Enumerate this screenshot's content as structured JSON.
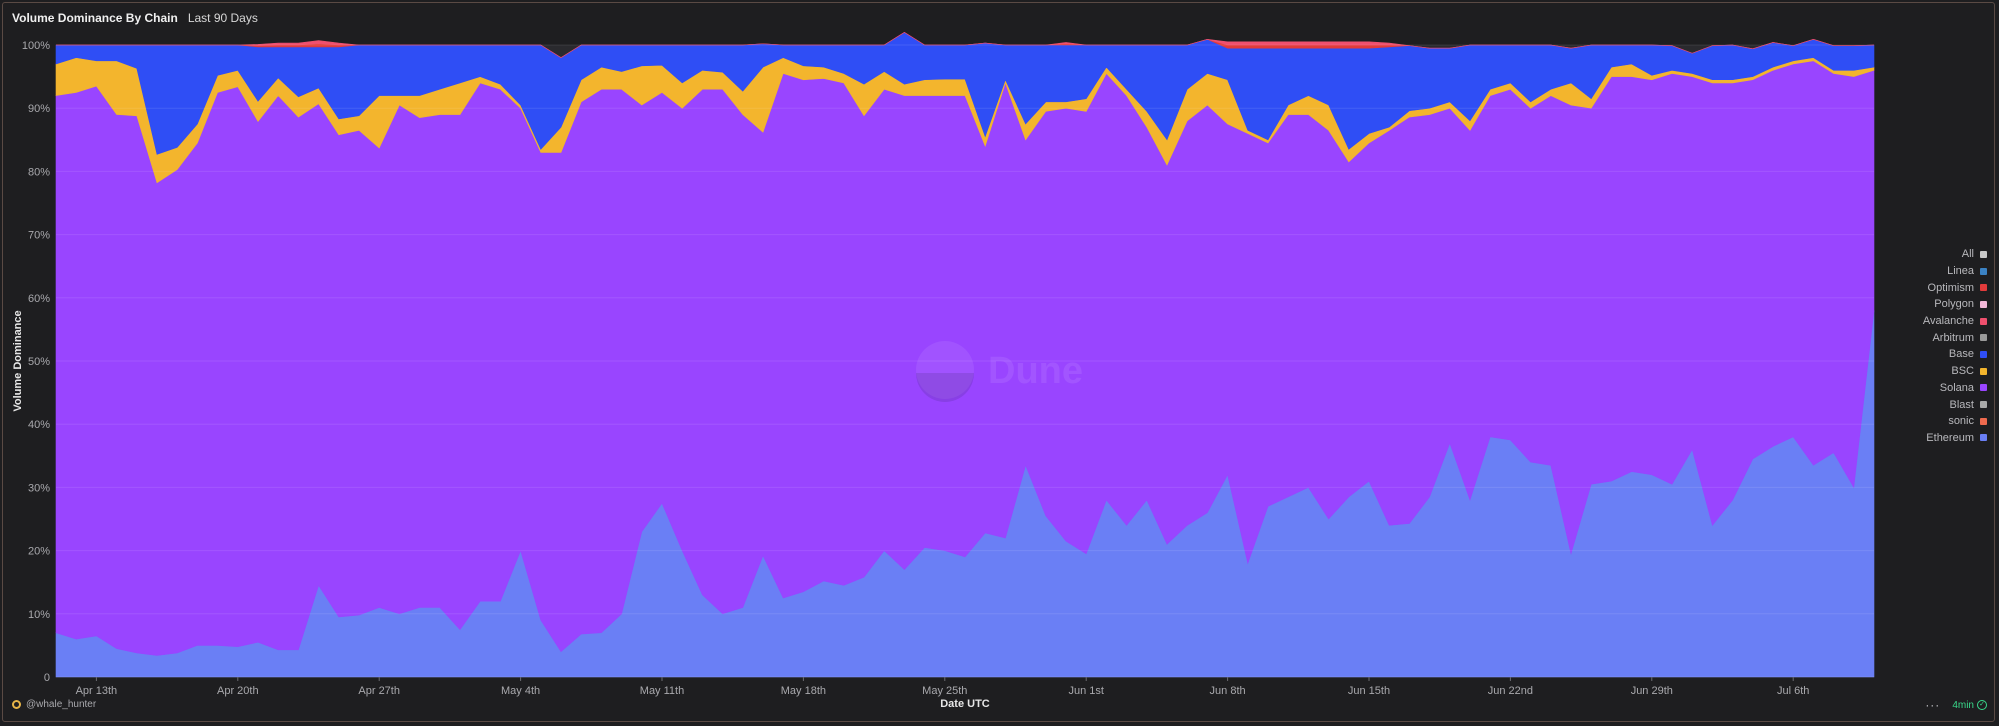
{
  "header": {
    "title": "Volume Dominance By Chain",
    "subtitle": "Last 90 Days"
  },
  "watermark": "Dune",
  "footer": {
    "user": "@whale_hunter",
    "status": "4min"
  },
  "icons": {
    "more": "more-icon",
    "status": "check-circle-icon",
    "user": "user-avatar-icon"
  },
  "chart_data": {
    "type": "area",
    "stacked": true,
    "normalized": true,
    "title": "Volume Dominance By Chain",
    "xlabel": "Date UTC",
    "ylabel": "Volume Dominance",
    "ylim": [
      0,
      100
    ],
    "yticks": [
      "0",
      "10%",
      "20%",
      "30%",
      "40%",
      "50%",
      "60%",
      "70%",
      "80%",
      "90%",
      "100%"
    ],
    "xticks": [
      {
        "label": "Apr 13th",
        "day": 2
      },
      {
        "label": "Apr 20th",
        "day": 9
      },
      {
        "label": "Apr 27th",
        "day": 16
      },
      {
        "label": "May 4th",
        "day": 23
      },
      {
        "label": "May 11th",
        "day": 30
      },
      {
        "label": "May 18th",
        "day": 37
      },
      {
        "label": "May 25th",
        "day": 44
      },
      {
        "label": "Jun 1st",
        "day": 51
      },
      {
        "label": "Jun 8th",
        "day": 58
      },
      {
        "label": "Jun 15th",
        "day": 65
      },
      {
        "label": "Jun 22nd",
        "day": 72
      },
      {
        "label": "Jun 29th",
        "day": 79
      },
      {
        "label": "Jul 6th",
        "day": 86
      }
    ],
    "grid": true,
    "legend_position": "right",
    "legend": [
      {
        "name": "All",
        "color": "#c8c8c8"
      },
      {
        "name": "Linea",
        "color": "#3b82c4"
      },
      {
        "name": "Optimism",
        "color": "#e23b3b"
      },
      {
        "name": "Polygon",
        "color": "#f3b8d8"
      },
      {
        "name": "Avalanche",
        "color": "#f0506e"
      },
      {
        "name": "Arbitrum",
        "color": "#9a9a9a"
      },
      {
        "name": "Base",
        "color": "#2f4ef5"
      },
      {
        "name": "BSC",
        "color": "#f3b52d"
      },
      {
        "name": "Solana",
        "color": "#9945ff"
      },
      {
        "name": "Blast",
        "color": "#a8a8a8"
      },
      {
        "name": "sonic",
        "color": "#ee6a4e"
      },
      {
        "name": "Ethereum",
        "color": "#6a7ff5"
      }
    ],
    "series": [
      {
        "name": "Ethereum",
        "color": "#6a7ff5",
        "values": [
          7,
          6,
          6.5,
          4.5,
          3.8,
          3.4,
          3.8,
          5,
          5,
          4.8,
          5.5,
          4.3,
          4.3,
          14.5,
          9.5,
          9.8,
          11,
          10,
          11,
          11,
          7.5,
          12,
          12,
          20,
          9,
          4,
          6.8,
          7,
          10,
          23,
          27.5,
          20,
          13,
          10,
          11,
          19.2,
          12.5,
          13.5,
          15.2,
          14.5,
          15.8,
          20,
          17,
          20.5,
          20,
          19,
          22.8,
          22,
          33.5,
          25.5,
          21.5,
          19.5,
          28,
          24,
          28,
          21,
          24,
          26,
          32,
          18,
          27,
          28.5,
          30,
          25,
          28.5,
          31,
          24,
          24.3,
          28.5,
          37,
          28,
          38,
          37.5,
          34,
          33.5,
          19.5,
          30.5,
          31,
          32.5,
          32,
          30.5,
          36,
          24,
          28,
          34.5,
          36.5,
          38,
          33.5,
          35.5,
          30,
          58
        ]
      },
      {
        "name": "Solana",
        "color": "#9945ff",
        "values": [
          85,
          86.5,
          87,
          84.5,
          85,
          74.8,
          76.5,
          79.5,
          87.5,
          88.6,
          82.4,
          87.7,
          84.3,
          76.2,
          76.3,
          76.7,
          72.7,
          80.5,
          77.5,
          78,
          81.5,
          82,
          81,
          70,
          74,
          79,
          84.2,
          86,
          83,
          67.5,
          65,
          70,
          80,
          83,
          78,
          67,
          83,
          81,
          79.5,
          79.5,
          73,
          73,
          75,
          71.5,
          72,
          73,
          61.2,
          72,
          51.5,
          64,
          68.5,
          70,
          67.5,
          68,
          59,
          60,
          64,
          64.5,
          55.5,
          68,
          57.5,
          60.5,
          59,
          61.5,
          53,
          53.5,
          62.5,
          64.3,
          60.5,
          53,
          58.5,
          54,
          55.5,
          56,
          58.5,
          71,
          59.5,
          64,
          62.5,
          62.5,
          65,
          59,
          70,
          66,
          60,
          59.5,
          59,
          64,
          60,
          65,
          38
        ]
      },
      {
        "name": "BSC",
        "color": "#f3b52d",
        "values": [
          5,
          5.5,
          4,
          8.5,
          7.5,
          4.5,
          3.5,
          3,
          2.7,
          2.6,
          3.2,
          2.8,
          3.2,
          2.5,
          2.5,
          2.3,
          8.3,
          1.5,
          3.5,
          4,
          5,
          1,
          0.8,
          0.5,
          0.5,
          4,
          3.5,
          3.5,
          2.8,
          6.2,
          4.3,
          4,
          3,
          2.7,
          3.7,
          10.3,
          2.5,
          2.2,
          1.8,
          1.5,
          5,
          2.8,
          1.8,
          2.5,
          2.6,
          2.6,
          1.5,
          0.5,
          2.5,
          1.5,
          1,
          2,
          1,
          1,
          2.5,
          4,
          5,
          5,
          7,
          0.5,
          0.5,
          1.5,
          3,
          4,
          2,
          1.5,
          0.5,
          1,
          1,
          1,
          1.5,
          1,
          1,
          1,
          1,
          3.5,
          1.5,
          1.5,
          2,
          0.7,
          0.5,
          0.5,
          0.5,
          0.5,
          0.5,
          0.5,
          0.5,
          0.5,
          0.5,
          1,
          0.5
        ]
      },
      {
        "name": "Base",
        "color": "#2f4ef5",
        "values": [
          3,
          2,
          2.5,
          2.5,
          3.7,
          17.3,
          16.2,
          12.5,
          4.8,
          4,
          8.6,
          4.9,
          7.9,
          6.5,
          11.4,
          11.2,
          8,
          8,
          8,
          7,
          6,
          5,
          6.2,
          9.5,
          16.5,
          11,
          5.5,
          3.5,
          4.2,
          3.3,
          3.2,
          6,
          4,
          4.3,
          7.3,
          3.7,
          2,
          3.3,
          3.5,
          4.5,
          6.2,
          4.2,
          8.2,
          5.5,
          5.4,
          5.4,
          14.8,
          5.5,
          12.5,
          9,
          9,
          8.5,
          3.5,
          7,
          10.5,
          15,
          7,
          5.4,
          5,
          13,
          14.5,
          9,
          7.5,
          9,
          16,
          13.5,
          12.7,
          10.3,
          9.5,
          8.5,
          12,
          7,
          6,
          9,
          7,
          5.5,
          8.5,
          3.5,
          3,
          4.8,
          3.9,
          3.2,
          5.4,
          5.5,
          4.4,
          3.9,
          2.4,
          2.9,
          3.9,
          3.9,
          3.5
        ]
      },
      {
        "name": "Optimism",
        "color": "#e23b3b",
        "values": [
          0,
          0,
          0,
          0,
          0,
          0,
          0,
          0,
          0,
          0,
          0.2,
          0.3,
          0.3,
          0.5,
          0.3,
          0,
          0,
          0,
          0,
          0,
          0,
          0,
          0,
          0,
          0,
          0,
          0,
          0,
          0,
          0,
          0,
          0,
          0,
          0,
          0,
          0,
          0,
          0,
          0,
          0,
          0,
          0,
          0,
          0,
          0,
          0,
          0,
          0,
          0,
          0,
          0.2,
          0,
          0,
          0,
          0,
          0,
          0,
          0,
          0.5,
          0.5,
          0.5,
          0.5,
          0.5,
          0.5,
          0.5,
          0.5,
          0.3,
          0,
          0,
          0,
          0,
          0,
          0,
          0,
          0,
          0,
          0,
          0,
          0,
          0,
          0,
          0,
          0,
          0,
          0,
          0,
          0,
          0,
          0,
          0,
          0
        ]
      },
      {
        "name": "Avalanche",
        "color": "#f0506e",
        "values": [
          0,
          0,
          0,
          0,
          0,
          0,
          0,
          0,
          0,
          0,
          0.2,
          0.3,
          0.3,
          0.5,
          0.3,
          0,
          0,
          0,
          0,
          0,
          0,
          0,
          0,
          0,
          0,
          0,
          0,
          0,
          0,
          0,
          0,
          0,
          0,
          0,
          0,
          0,
          0,
          0,
          0,
          0,
          0,
          0,
          0,
          0,
          0,
          0,
          0,
          0,
          0,
          0,
          0.2,
          0,
          0,
          0,
          0,
          0,
          0,
          0,
          0.5,
          0.5,
          0.5,
          0.5,
          0.5,
          0.5,
          0.5,
          0.5,
          0.3,
          0,
          0,
          0,
          0,
          0,
          0,
          0,
          0,
          0,
          0,
          0,
          0,
          0,
          0,
          0,
          0,
          0,
          0,
          0,
          0,
          0,
          0,
          0,
          0
        ]
      }
    ]
  }
}
